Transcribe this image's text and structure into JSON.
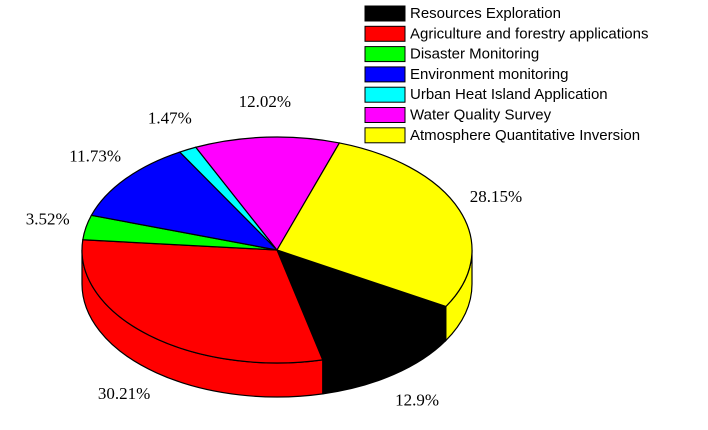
{
  "chart_data": {
    "type": "pie",
    "labels": [
      "Resources Exploration",
      "Agriculture and forestry applications",
      "Disaster Monitoring",
      "Environment monitoring",
      "Urban Heat Island Application",
      "Water Quality Survey",
      "Atmosphere Quantitative Inversion"
    ],
    "values": [
      12.9,
      30.21,
      3.52,
      11.73,
      1.47,
      12.02,
      28.15
    ],
    "value_labels": [
      "12.9%",
      "30.21%",
      "3.52%",
      "11.73%",
      "1.47%",
      "12.02%",
      "28.15%"
    ],
    "colors": [
      "#000000",
      "#ff0000",
      "#00ff00",
      "#0000ff",
      "#00ffff",
      "#ff00ff",
      "#ffff00"
    ],
    "legend": "upper right"
  }
}
